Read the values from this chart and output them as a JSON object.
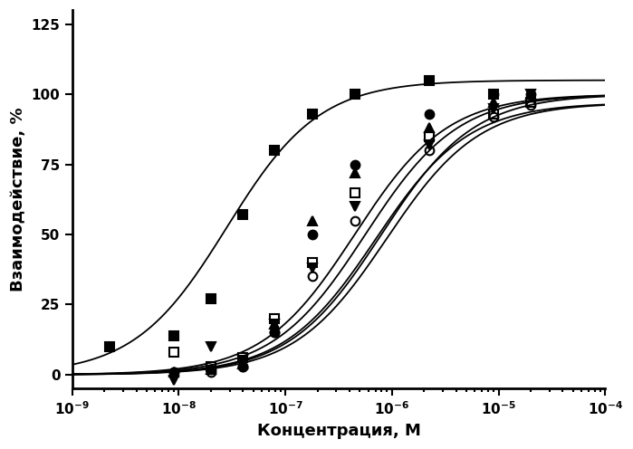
{
  "xlabel": "Концентрация, М",
  "ylabel": "Взаимодействие, %",
  "xlim_log": [
    -9,
    -4
  ],
  "ylim": [
    -5,
    130
  ],
  "yticks": [
    0,
    25,
    50,
    75,
    100,
    125
  ],
  "background_color": "#ffffff",
  "series": [
    {
      "label": "filled_square",
      "marker": "s",
      "fillstyle": "full",
      "color": "#000000",
      "markersize": 7,
      "ec50_log": -7.55,
      "hill": 1.0,
      "top": 105,
      "bottom": 0,
      "x_data_log": [
        -8.65,
        -8.05,
        -7.7,
        -7.4,
        -7.1,
        -6.75,
        -6.35,
        -5.65,
        -5.05
      ],
      "y_data": [
        10,
        14,
        27,
        57,
        80,
        93,
        100,
        105,
        100
      ]
    },
    {
      "label": "filled_circle",
      "marker": "o",
      "fillstyle": "full",
      "color": "#000000",
      "markersize": 7,
      "ec50_log": -6.35,
      "hill": 1.0,
      "top": 100,
      "bottom": 0,
      "x_data_log": [
        -8.05,
        -7.7,
        -7.4,
        -7.1,
        -6.75,
        -6.35,
        -5.65,
        -5.05,
        -4.7
      ],
      "y_data": [
        1,
        2,
        3,
        15,
        50,
        75,
        93,
        100,
        100
      ]
    },
    {
      "label": "filled_triangle_up",
      "marker": "^",
      "fillstyle": "full",
      "color": "#000000",
      "markersize": 7,
      "ec50_log": -6.25,
      "hill": 1.0,
      "top": 100,
      "bottom": 0,
      "x_data_log": [
        -8.05,
        -7.7,
        -7.4,
        -7.1,
        -6.75,
        -6.35,
        -5.65,
        -5.05,
        -4.7
      ],
      "y_data": [
        1,
        2,
        4,
        18,
        55,
        72,
        88,
        97,
        100
      ]
    },
    {
      "label": "open_square",
      "marker": "s",
      "fillstyle": "none",
      "color": "#000000",
      "markersize": 7,
      "ec50_log": -6.15,
      "hill": 1.0,
      "top": 97,
      "bottom": 0,
      "x_data_log": [
        -8.05,
        -7.7,
        -7.4,
        -7.1,
        -6.75,
        -6.35,
        -5.65,
        -5.05,
        -4.7
      ],
      "y_data": [
        8,
        3,
        6,
        20,
        40,
        65,
        85,
        93,
        97
      ]
    },
    {
      "label": "filled_triangle_down",
      "marker": "v",
      "fillstyle": "full",
      "color": "#000000",
      "markersize": 7,
      "ec50_log": -6.1,
      "hill": 1.0,
      "top": 100,
      "bottom": 0,
      "x_data_log": [
        -8.05,
        -7.7,
        -7.4,
        -7.1,
        -6.75,
        -6.35,
        -5.65,
        -5.05,
        -4.7
      ],
      "y_data": [
        -2,
        10,
        5,
        18,
        38,
        60,
        82,
        95,
        100
      ]
    },
    {
      "label": "open_circle",
      "marker": "o",
      "fillstyle": "none",
      "color": "#000000",
      "markersize": 7,
      "ec50_log": -6.05,
      "hill": 1.0,
      "top": 97,
      "bottom": 0,
      "x_data_log": [
        -8.05,
        -7.7,
        -7.4,
        -7.1,
        -6.75,
        -6.35,
        -5.65,
        -5.05,
        -4.7
      ],
      "y_data": [
        1,
        1,
        3,
        15,
        35,
        55,
        80,
        92,
        96
      ]
    }
  ]
}
